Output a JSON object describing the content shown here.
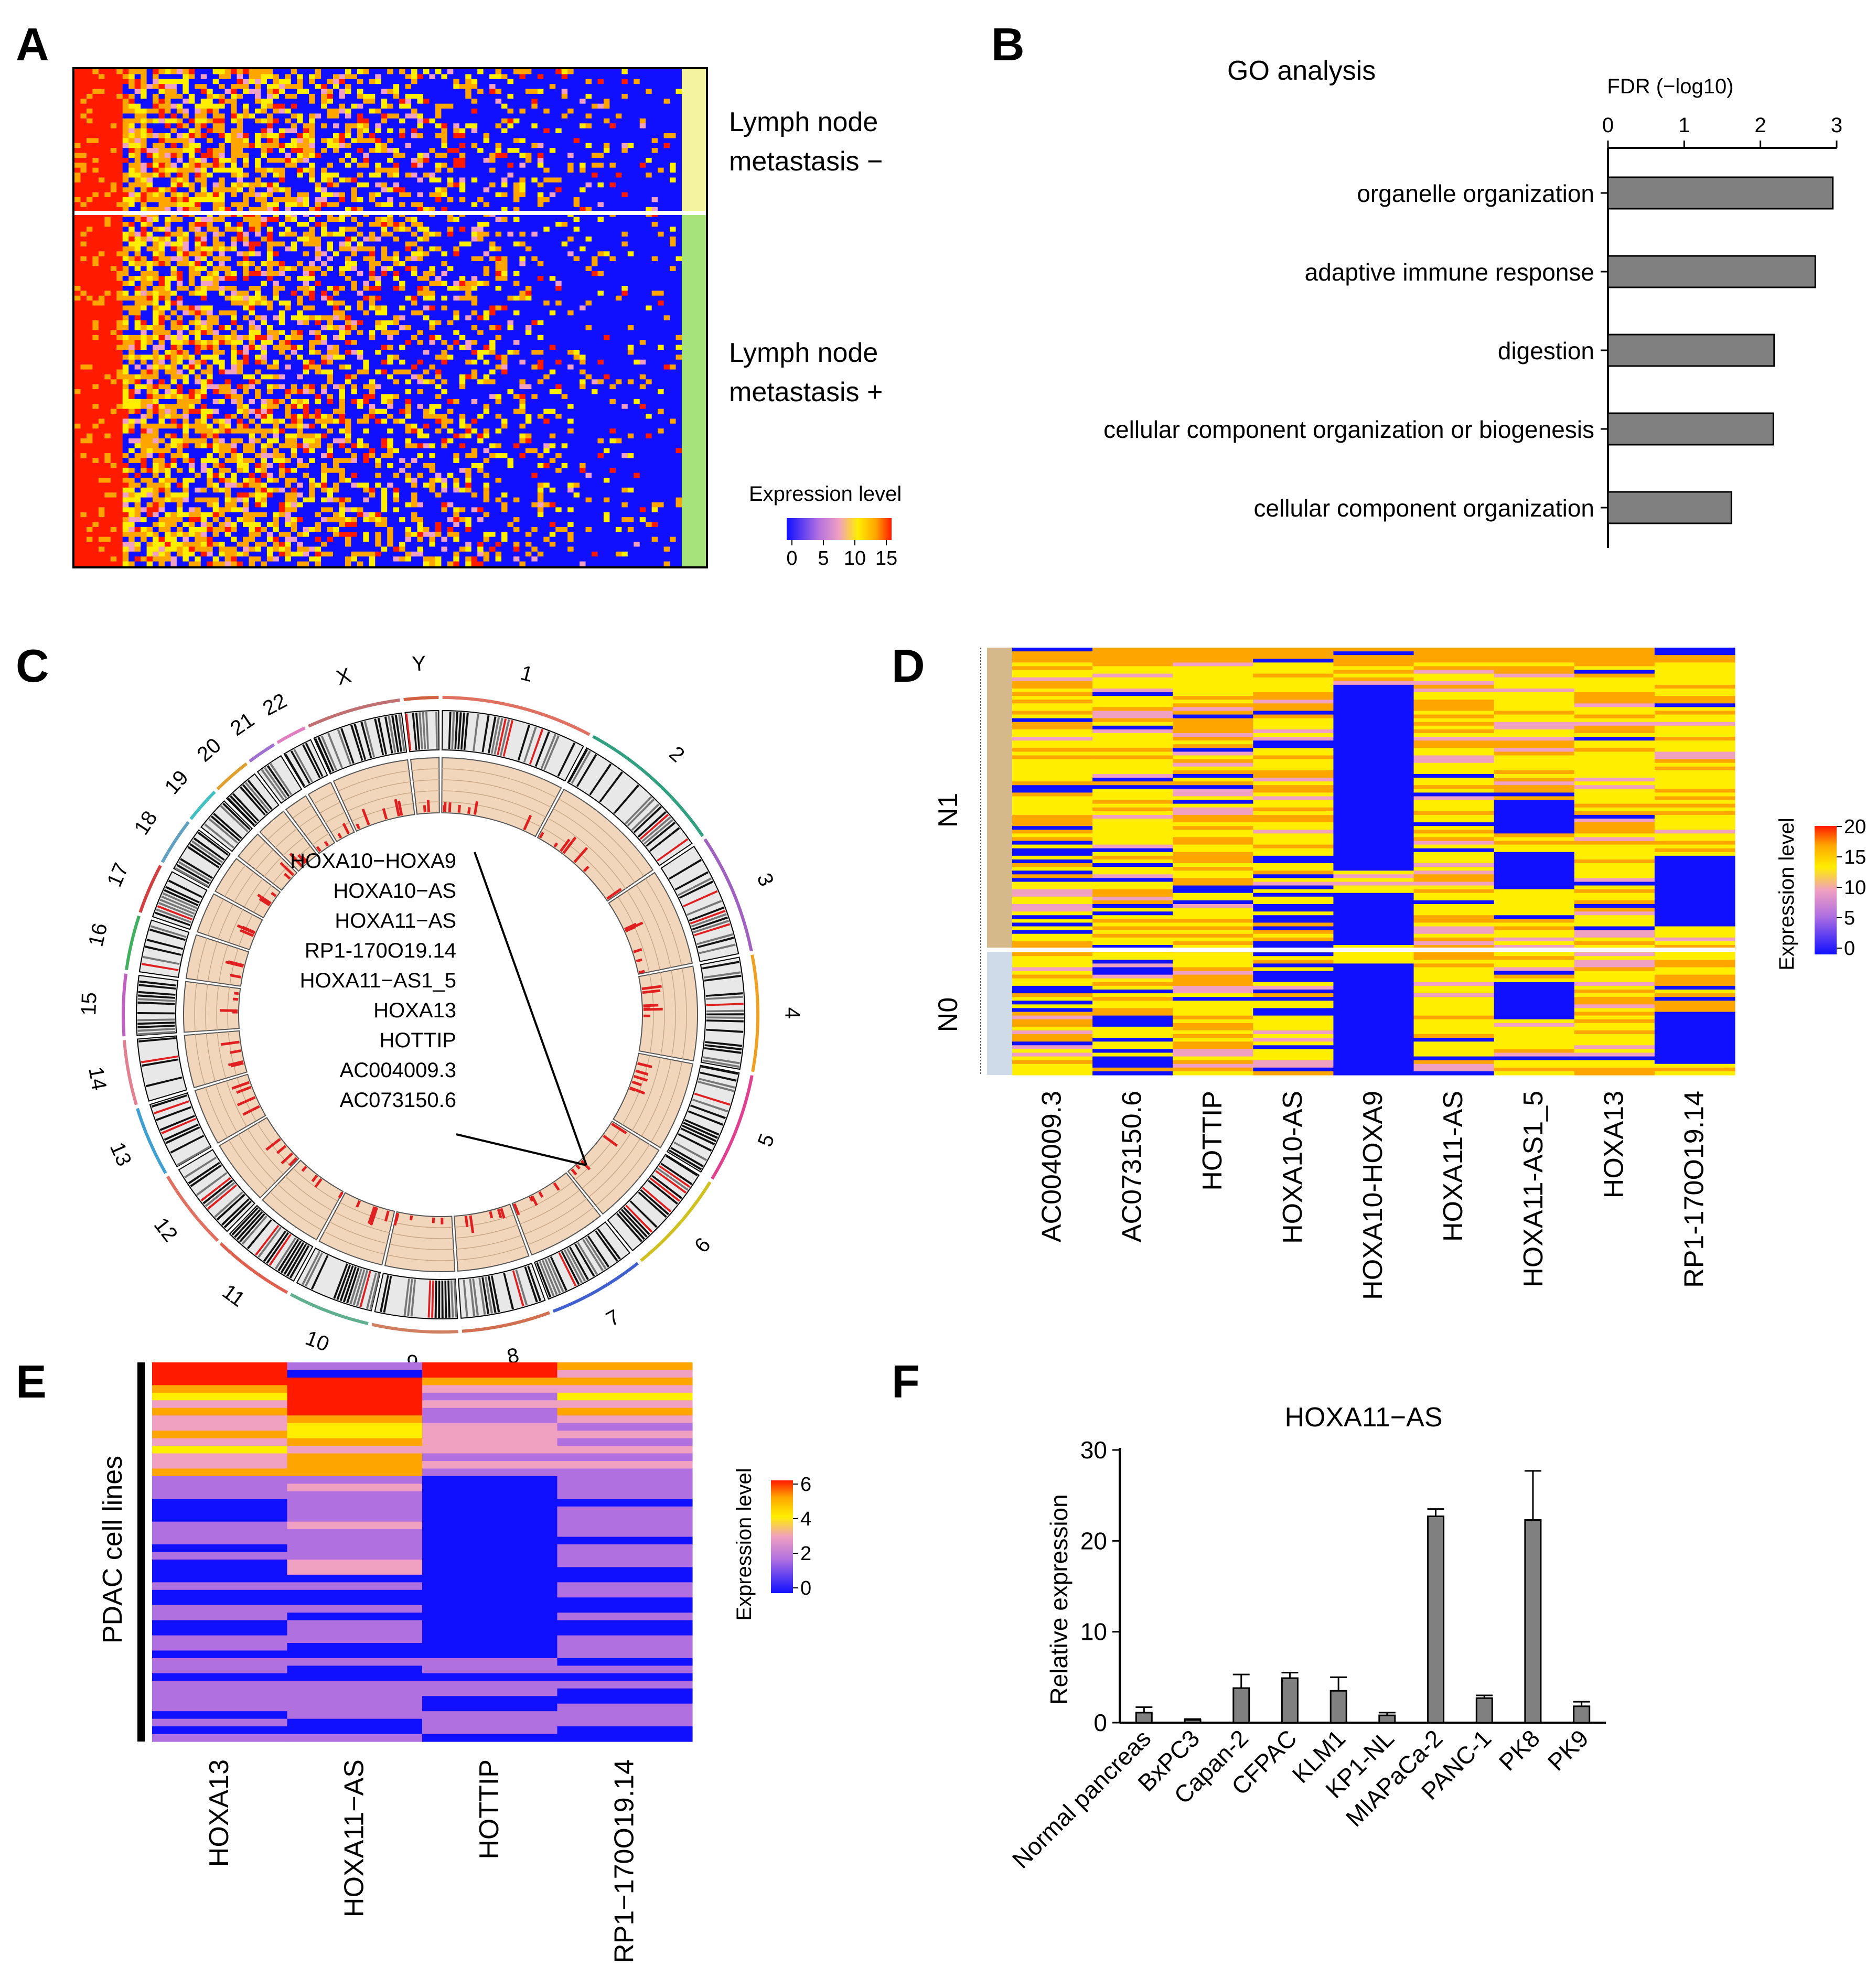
{
  "panels": {
    "A": {
      "label": "A"
    },
    "B": {
      "label": "B"
    },
    "C": {
      "label": "C"
    },
    "D": {
      "label": "D"
    },
    "E": {
      "label": "E"
    },
    "F": {
      "label": "F"
    }
  },
  "colors": {
    "low": "#1010ff",
    "mid_purple": "#b070e0",
    "mid_pink": "#f0a0c0",
    "mid_yellow": "#ffee00",
    "mid_orange": "#ffa500",
    "high": "#ff1a00",
    "bar_fill": "#808080",
    "tan": "#d6b98a",
    "light_blue": "#cfdbe8",
    "lymph_neg": "#f3f3a0",
    "lymph_pos": "#a6e37a"
  },
  "chart_data": [
    {
      "panel": "A",
      "type": "heatmap",
      "groups": [
        "Lymph node metastasis −",
        "Lymph node metastasis +"
      ],
      "group_labels": [
        [
          "Lymph node",
          "metastasis −"
        ],
        [
          "Lymph node",
          "metastasis +"
        ]
      ],
      "colorbar": {
        "title": "Expression level",
        "ticks": [
          "0",
          "5",
          "10",
          "15"
        ],
        "range": [
          0,
          15
        ]
      }
    },
    {
      "panel": "B",
      "type": "bar",
      "orientation": "horizontal",
      "title": "GO analysis",
      "xlabel": "FDR (−log10)",
      "xlim": [
        0,
        3
      ],
      "xticks": [
        "0",
        "1",
        "2",
        "3"
      ],
      "categories": [
        "organelle organization",
        "adaptive immune response",
        "digestion",
        "cellular component organization or biogenesis",
        "cellular component organization"
      ],
      "values": [
        2.95,
        2.72,
        2.18,
        2.17,
        1.62
      ]
    },
    {
      "panel": "C",
      "type": "circos",
      "chromosomes": [
        "1",
        "2",
        "3",
        "4",
        "5",
        "6",
        "7",
        "8",
        "9",
        "10",
        "11",
        "12",
        "13",
        "14",
        "15",
        "16",
        "17",
        "18",
        "19",
        "20",
        "21",
        "22",
        "X",
        "Y"
      ],
      "annotated_genes": [
        "HOXA10−HOXA9",
        "HOXA10−AS",
        "HOXA11−AS",
        "RP1-170O19.14",
        "HOXA11−AS1_5",
        "HOXA13",
        "HOTTIP",
        "AC004009.3",
        "AC073150.6"
      ]
    },
    {
      "panel": "D",
      "type": "heatmap",
      "genes": [
        "AC004009.3",
        "AC073150.6",
        "HOTTIP",
        "HOXA10-AS",
        "HOXA10-HOXA9",
        "HOXA11-AS",
        "HOXA11-AS1_5",
        "HOXA13",
        "RP1-170O19.14"
      ],
      "groups": [
        "N1",
        "N0"
      ],
      "colorbar": {
        "title": "Expression level",
        "ticks": [
          "0",
          "5",
          "10",
          "15",
          "20"
        ],
        "range": [
          0,
          20
        ]
      }
    },
    {
      "panel": "E",
      "type": "heatmap",
      "genes": [
        "HOXA13",
        "HOXA11−AS",
        "HOTTIP",
        "RP1−170O19.14"
      ],
      "row_label": "PDAC cell lines",
      "colorbar": {
        "title": "Expression level",
        "ticks": [
          "0",
          "2",
          "4",
          "6"
        ],
        "range": [
          0,
          6
        ]
      }
    },
    {
      "panel": "F",
      "type": "bar",
      "title": "HOXA11−AS",
      "ylabel": "Relative expression",
      "ylim": [
        0,
        30
      ],
      "yticks": [
        "0",
        "10",
        "20",
        "30"
      ],
      "categories": [
        "Normal pancreas",
        "BxPC3",
        "Capan-2",
        "CFPAC",
        "KLM1",
        "KP1-NL",
        "MIAPaCa-2",
        "PANC-1",
        "PK8",
        "PK9"
      ],
      "values": [
        1.1,
        0.3,
        3.8,
        4.9,
        3.5,
        0.8,
        22.7,
        2.7,
        22.3,
        1.8
      ],
      "errors": [
        0.6,
        0.1,
        1.5,
        0.6,
        1.5,
        0.3,
        0.8,
        0.3,
        5.4,
        0.5
      ]
    }
  ]
}
